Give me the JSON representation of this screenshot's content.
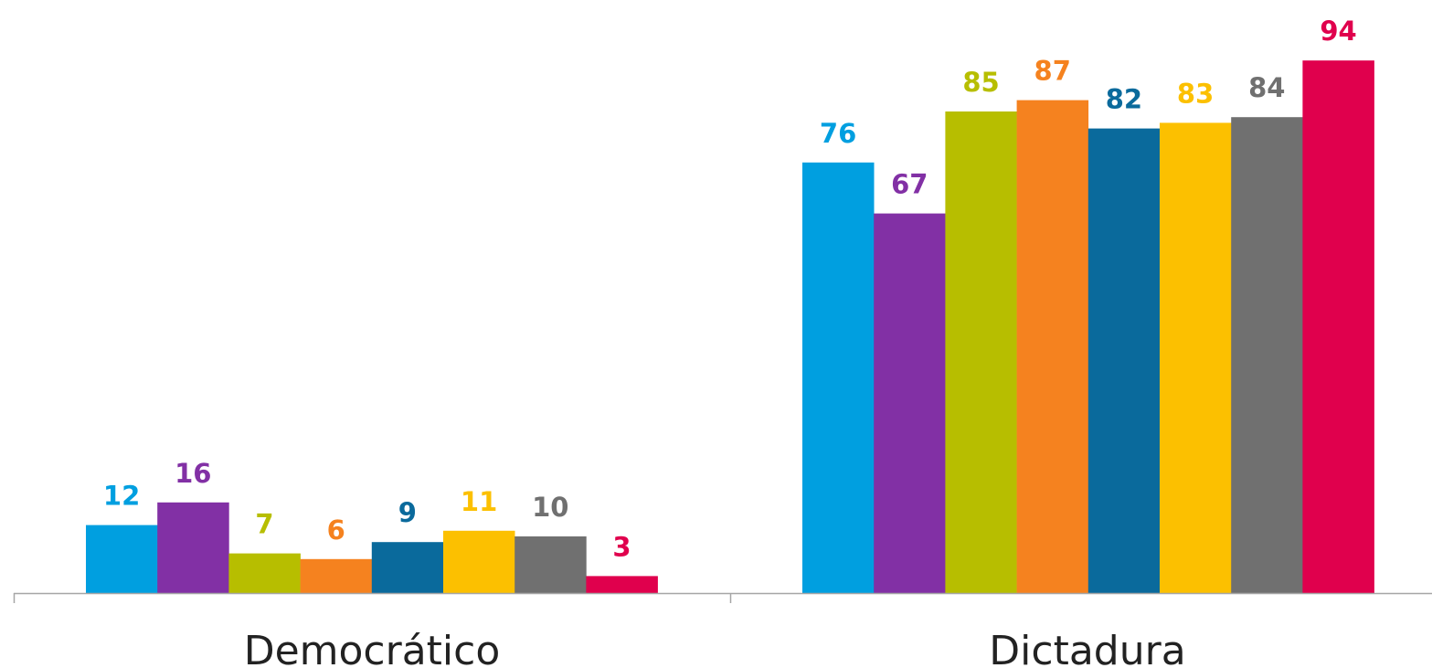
{
  "chart_data": {
    "type": "bar",
    "categories": [
      "Democrático",
      "Dictadura"
    ],
    "series": [
      {
        "color": "#009FE0",
        "values": [
          12,
          76
        ]
      },
      {
        "color": "#8230A5",
        "values": [
          16,
          67
        ]
      },
      {
        "color": "#B7BE00",
        "values": [
          7,
          85
        ]
      },
      {
        "color": "#F5821F",
        "values": [
          6,
          87
        ]
      },
      {
        "color": "#0A6A9C",
        "values": [
          9,
          82
        ]
      },
      {
        "color": "#FCC000",
        "values": [
          11,
          83
        ]
      },
      {
        "color": "#707070",
        "values": [
          10,
          84
        ]
      },
      {
        "color": "#E0004D",
        "values": [
          3,
          94
        ]
      }
    ],
    "ylim": [
      0,
      100
    ],
    "grid": false,
    "axis_color": "#A6A6A6",
    "label_colors": [
      "#009FE0",
      "#8230A5",
      "#B7BE00",
      "#F5821F",
      "#0A6A9C",
      "#FCC000",
      "#707070",
      "#E0004D"
    ]
  }
}
